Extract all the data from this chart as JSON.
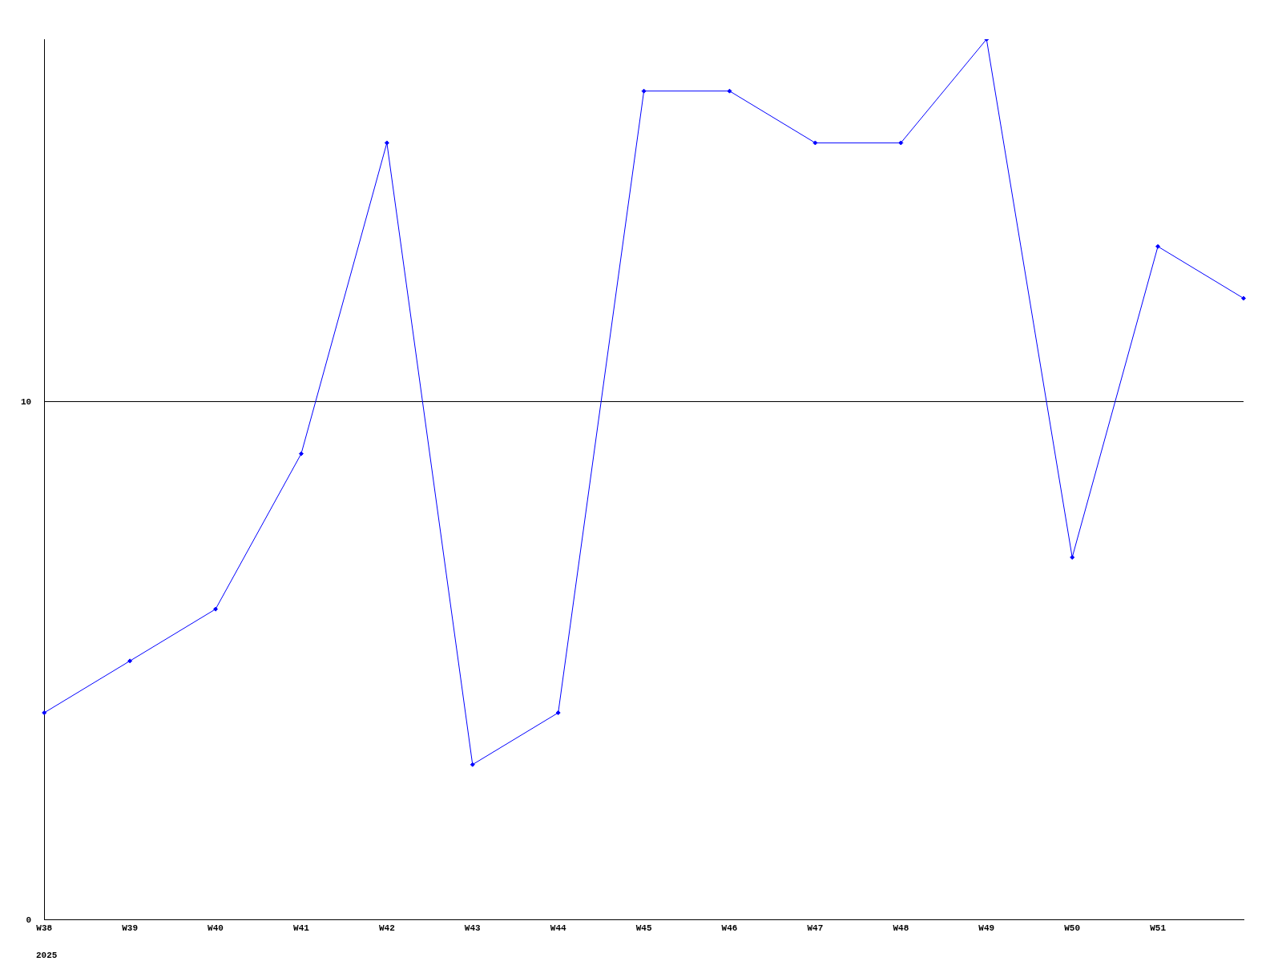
{
  "chart_data": {
    "type": "line",
    "categories": [
      "W38",
      "W39",
      "W40",
      "W41",
      "W42",
      "W43",
      "W44",
      "W45",
      "W46",
      "W47",
      "W48",
      "W49",
      "W50",
      "W51",
      null
    ],
    "series": [
      {
        "color": "#0000ff",
        "values": [
          4,
          5,
          6,
          9,
          15,
          3,
          4,
          16,
          16,
          15,
          15,
          17,
          7,
          13,
          12
        ]
      }
    ],
    "ylim": [
      0,
      17
    ],
    "yticks": [
      0,
      10
    ],
    "grid": "y",
    "marker": "diamond",
    "legend": false,
    "annotations": [
      "2025"
    ]
  }
}
